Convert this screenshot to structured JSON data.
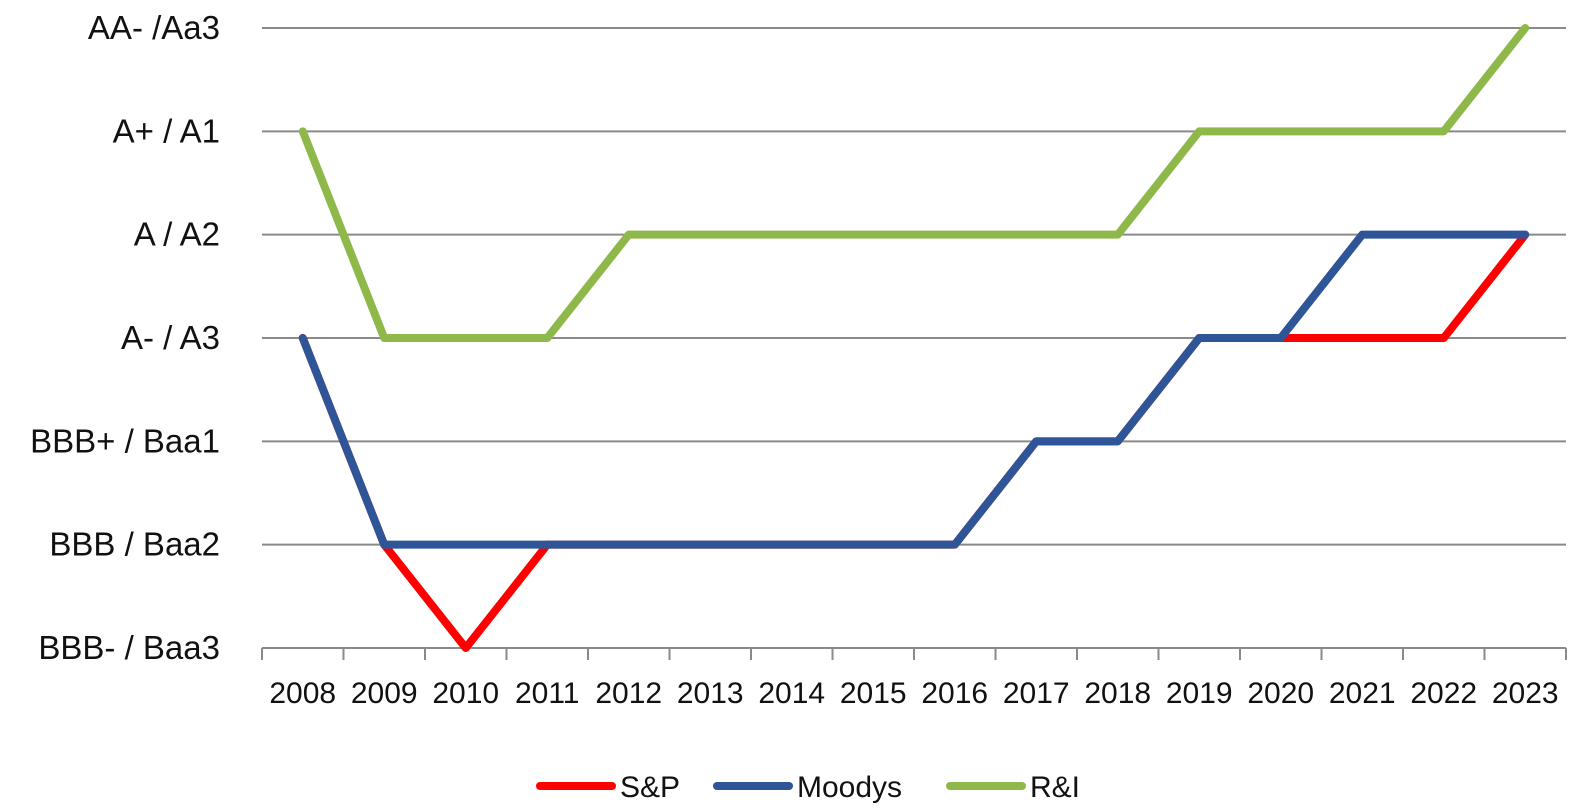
{
  "chart_data": {
    "type": "line",
    "title": "",
    "xlabel": "",
    "ylabel": "",
    "x": [
      "2008",
      "2009",
      "2010",
      "2011",
      "2012",
      "2013",
      "2014",
      "2015",
      "2016",
      "2017",
      "2018",
      "2019",
      "2020",
      "2021",
      "2022",
      "2023"
    ],
    "y_categories": [
      "BBB- / Baa3",
      "BBB / Baa2",
      "BBB+ / Baa1",
      "A- / A3",
      "A / A2",
      "A+ / A1",
      "AA- /Aa3"
    ],
    "ylim": [
      0,
      6
    ],
    "grid": true,
    "legend_position": "bottom",
    "series": [
      {
        "name": "S&P",
        "color": "#ff0000",
        "values": [
          3,
          1,
          0,
          1,
          1,
          1,
          1,
          1,
          1,
          2,
          2,
          3,
          3,
          3,
          3,
          4
        ]
      },
      {
        "name": "Moodys",
        "color": "#2e5597",
        "values": [
          3,
          1,
          1,
          1,
          1,
          1,
          1,
          1,
          1,
          2,
          2,
          3,
          3,
          4,
          4,
          4
        ]
      },
      {
        "name": "R&I",
        "color": "#8fb84a",
        "values": [
          5,
          3,
          3,
          3,
          4,
          4,
          4,
          4,
          4,
          4,
          4,
          5,
          5,
          5,
          5,
          6
        ]
      }
    ]
  }
}
